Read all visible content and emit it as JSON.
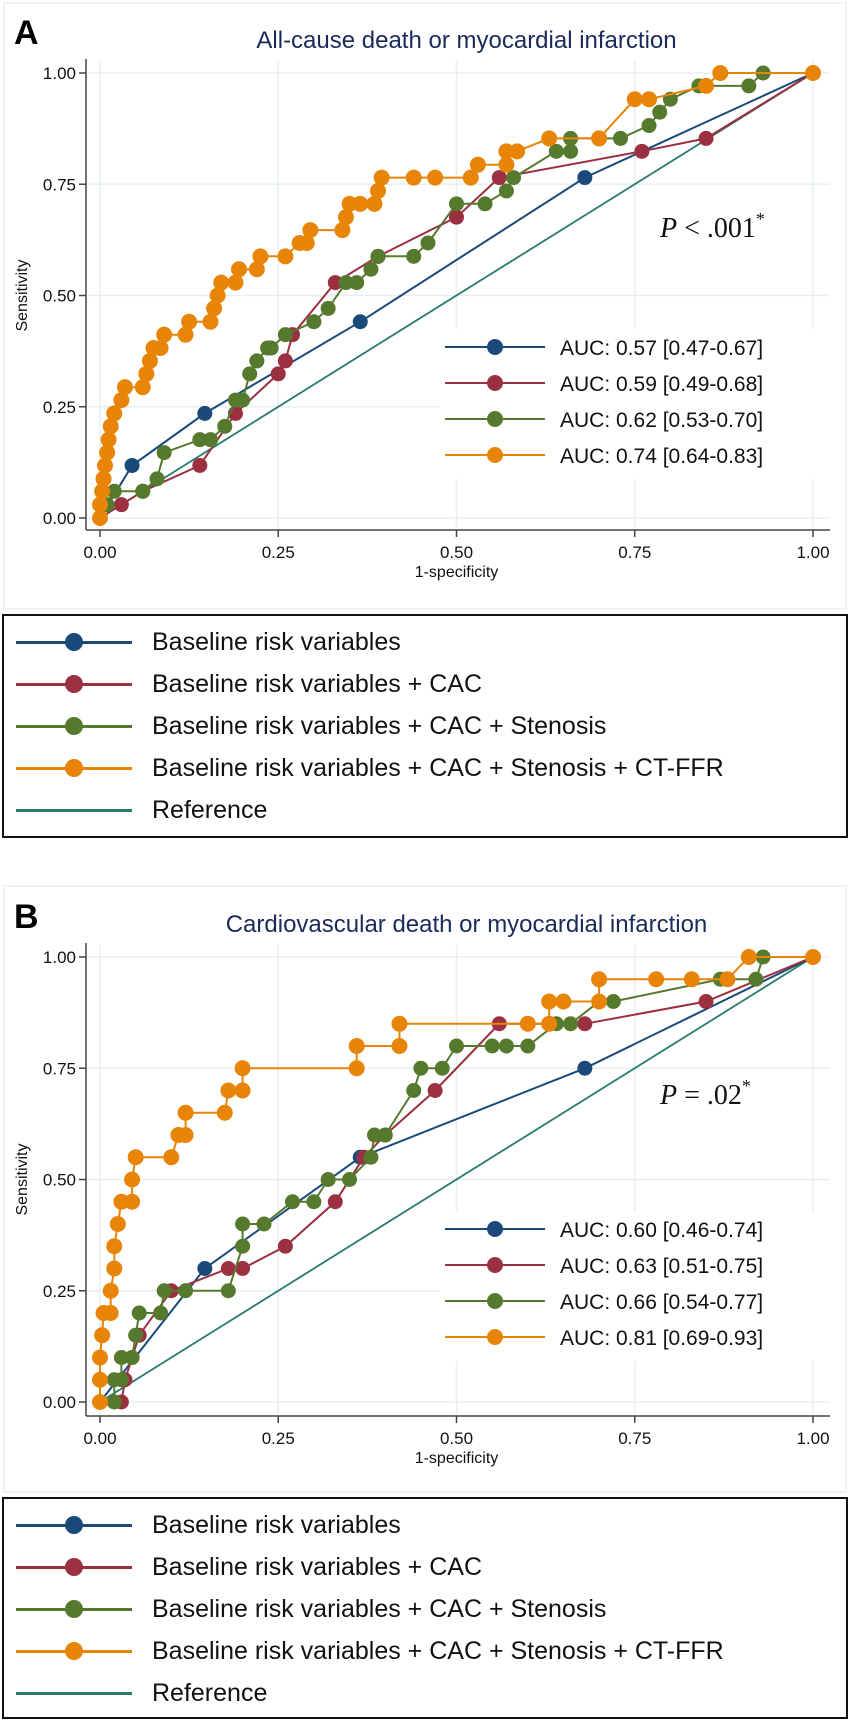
{
  "colors": {
    "baseline": "#1a4a7a",
    "cac": "#9b3040",
    "stenosis": "#557a2e",
    "ctffr": "#e88508",
    "reference": "#2a7a6e",
    "title": "#1a2a5a",
    "grid": "#e6f0f3"
  },
  "legend_labels": [
    "Baseline risk variables",
    "Baseline risk variables + CAC",
    "Baseline risk variables + CAC + Stenosis",
    "Baseline risk variables + CAC + Stenosis + CT-FFR",
    "Reference"
  ],
  "chart_data": [
    {
      "type": "line",
      "panel_label": "A",
      "title": "All-cause death or myocardial infarction",
      "xlabel": "1-specificity",
      "ylabel": "Sensitivity",
      "xlim": [
        0,
        1
      ],
      "ylim": [
        0,
        1
      ],
      "xticks": [
        "0.00",
        "0.25",
        "0.50",
        "0.75",
        "1.00"
      ],
      "yticks": [
        "0.00",
        "0.25",
        "0.50",
        "0.75",
        "1.00"
      ],
      "grid": true,
      "annotation": "P < .001*",
      "auc_legend": [
        "AUC: 0.57 [0.47-0.67]",
        "AUC: 0.59 [0.49-0.68]",
        "AUC: 0.62 [0.53-0.70]",
        "AUC: 0.74 [0.64-0.83]"
      ],
      "series": [
        {
          "name": "Baseline risk variables",
          "key": "baseline",
          "points": [
            [
              0,
              0
            ],
            [
              0.045,
              0.118
            ],
            [
              0.147,
              0.235
            ],
            [
              0.365,
              0.441
            ],
            [
              0.68,
              0.765
            ],
            [
              1,
              1
            ]
          ]
        },
        {
          "name": "Baseline risk variables + CAC",
          "key": "cac",
          "points": [
            [
              0,
              0
            ],
            [
              0.03,
              0.03
            ],
            [
              0.06,
              0.06
            ],
            [
              0.14,
              0.118
            ],
            [
              0.19,
              0.235
            ],
            [
              0.25,
              0.324
            ],
            [
              0.26,
              0.353
            ],
            [
              0.27,
              0.412
            ],
            [
              0.33,
              0.529
            ],
            [
              0.39,
              0.588
            ],
            [
              0.5,
              0.676
            ],
            [
              0.56,
              0.765
            ],
            [
              0.76,
              0.824
            ],
            [
              0.85,
              0.853
            ],
            [
              1,
              1
            ]
          ]
        },
        {
          "name": "Baseline risk variables + CAC + Stenosis",
          "key": "stenosis",
          "points": [
            [
              0,
              0
            ],
            [
              0.01,
              0.03
            ],
            [
              0.02,
              0.06
            ],
            [
              0.06,
              0.06
            ],
            [
              0.08,
              0.088
            ],
            [
              0.09,
              0.147
            ],
            [
              0.14,
              0.176
            ],
            [
              0.155,
              0.176
            ],
            [
              0.175,
              0.206
            ],
            [
              0.19,
              0.265
            ],
            [
              0.2,
              0.265
            ],
            [
              0.21,
              0.324
            ],
            [
              0.22,
              0.353
            ],
            [
              0.235,
              0.382
            ],
            [
              0.24,
              0.382
            ],
            [
              0.26,
              0.412
            ],
            [
              0.3,
              0.441
            ],
            [
              0.32,
              0.471
            ],
            [
              0.345,
              0.529
            ],
            [
              0.36,
              0.529
            ],
            [
              0.38,
              0.559
            ],
            [
              0.39,
              0.588
            ],
            [
              0.44,
              0.588
            ],
            [
              0.46,
              0.618
            ],
            [
              0.5,
              0.706
            ],
            [
              0.54,
              0.706
            ],
            [
              0.57,
              0.735
            ],
            [
              0.58,
              0.765
            ],
            [
              0.64,
              0.824
            ],
            [
              0.66,
              0.824
            ],
            [
              0.66,
              0.853
            ],
            [
              0.73,
              0.853
            ],
            [
              0.77,
              0.882
            ],
            [
              0.785,
              0.912
            ],
            [
              0.8,
              0.941
            ],
            [
              0.84,
              0.971
            ],
            [
              0.91,
              0.971
            ],
            [
              0.93,
              1
            ],
            [
              1,
              1
            ]
          ]
        },
        {
          "name": "Baseline risk variables + CAC + Stenosis + CT-FFR",
          "key": "ctffr",
          "points": [
            [
              0,
              0
            ],
            [
              0,
              0.03
            ],
            [
              0.003,
              0.06
            ],
            [
              0.005,
              0.088
            ],
            [
              0.007,
              0.118
            ],
            [
              0.01,
              0.147
            ],
            [
              0.012,
              0.176
            ],
            [
              0.015,
              0.206
            ],
            [
              0.02,
              0.235
            ],
            [
              0.03,
              0.265
            ],
            [
              0.035,
              0.294
            ],
            [
              0.06,
              0.294
            ],
            [
              0.065,
              0.324
            ],
            [
              0.07,
              0.353
            ],
            [
              0.075,
              0.382
            ],
            [
              0.085,
              0.382
            ],
            [
              0.09,
              0.412
            ],
            [
              0.12,
              0.412
            ],
            [
              0.125,
              0.441
            ],
            [
              0.155,
              0.441
            ],
            [
              0.16,
              0.471
            ],
            [
              0.165,
              0.5
            ],
            [
              0.17,
              0.529
            ],
            [
              0.19,
              0.529
            ],
            [
              0.195,
              0.559
            ],
            [
              0.22,
              0.559
            ],
            [
              0.225,
              0.588
            ],
            [
              0.26,
              0.588
            ],
            [
              0.28,
              0.618
            ],
            [
              0.29,
              0.618
            ],
            [
              0.295,
              0.647
            ],
            [
              0.34,
              0.647
            ],
            [
              0.345,
              0.676
            ],
            [
              0.35,
              0.706
            ],
            [
              0.365,
              0.706
            ],
            [
              0.385,
              0.706
            ],
            [
              0.39,
              0.735
            ],
            [
              0.395,
              0.765
            ],
            [
              0.44,
              0.765
            ],
            [
              0.47,
              0.765
            ],
            [
              0.52,
              0.765
            ],
            [
              0.53,
              0.794
            ],
            [
              0.57,
              0.794
            ],
            [
              0.57,
              0.824
            ],
            [
              0.585,
              0.824
            ],
            [
              0.63,
              0.853
            ],
            [
              0.7,
              0.853
            ],
            [
              0.75,
              0.941
            ],
            [
              0.77,
              0.941
            ],
            [
              0.85,
              0.971
            ],
            [
              0.87,
              1
            ],
            [
              1,
              1
            ]
          ]
        },
        {
          "name": "Reference",
          "key": "reference",
          "points": [
            [
              0,
              0
            ],
            [
              1,
              1
            ]
          ]
        }
      ]
    },
    {
      "type": "line",
      "panel_label": "B",
      "title": "Cardiovascular death or myocardial infarction",
      "xlabel": "1-specificity",
      "ylabel": "Sensitivity",
      "xlim": [
        0,
        1
      ],
      "ylim": [
        0,
        1
      ],
      "xticks": [
        "0.00",
        "0.25",
        "0.50",
        "0.75",
        "1.00"
      ],
      "yticks": [
        "0.00",
        "0.25",
        "0.50",
        "0.75",
        "1.00"
      ],
      "grid": true,
      "annotation": "P = .02*",
      "auc_legend": [
        "AUC: 0.60 [0.46-0.74]",
        "AUC: 0.63 [0.51-0.75]",
        "AUC: 0.66 [0.54-0.77]",
        "AUC: 0.81 [0.69-0.93]"
      ],
      "series": [
        {
          "name": "Baseline risk variables",
          "key": "baseline",
          "points": [
            [
              0,
              0
            ],
            [
              0.147,
              0.3
            ],
            [
              0.365,
              0.55
            ],
            [
              0.68,
              0.75
            ],
            [
              1,
              1
            ]
          ]
        },
        {
          "name": "Baseline risk variables + CAC",
          "key": "cac",
          "points": [
            [
              0,
              0
            ],
            [
              0.03,
              0
            ],
            [
              0.035,
              0.05
            ],
            [
              0.045,
              0.1
            ],
            [
              0.055,
              0.15
            ],
            [
              0.1,
              0.25
            ],
            [
              0.18,
              0.3
            ],
            [
              0.2,
              0.3
            ],
            [
              0.26,
              0.35
            ],
            [
              0.33,
              0.45
            ],
            [
              0.37,
              0.55
            ],
            [
              0.4,
              0.6
            ],
            [
              0.47,
              0.7
            ],
            [
              0.56,
              0.85
            ],
            [
              0.68,
              0.85
            ],
            [
              0.85,
              0.9
            ],
            [
              1,
              1
            ]
          ]
        },
        {
          "name": "Baseline risk variables + CAC + Stenosis",
          "key": "stenosis",
          "points": [
            [
              0,
              0
            ],
            [
              0.02,
              0
            ],
            [
              0.02,
              0.05
            ],
            [
              0.03,
              0.05
            ],
            [
              0.03,
              0.1
            ],
            [
              0.045,
              0.1
            ],
            [
              0.05,
              0.15
            ],
            [
              0.055,
              0.2
            ],
            [
              0.085,
              0.2
            ],
            [
              0.09,
              0.25
            ],
            [
              0.12,
              0.25
            ],
            [
              0.18,
              0.25
            ],
            [
              0.2,
              0.35
            ],
            [
              0.2,
              0.4
            ],
            [
              0.23,
              0.4
            ],
            [
              0.27,
              0.45
            ],
            [
              0.3,
              0.45
            ],
            [
              0.32,
              0.5
            ],
            [
              0.35,
              0.5
            ],
            [
              0.38,
              0.55
            ],
            [
              0.385,
              0.6
            ],
            [
              0.4,
              0.6
            ],
            [
              0.44,
              0.7
            ],
            [
              0.45,
              0.75
            ],
            [
              0.48,
              0.75
            ],
            [
              0.5,
              0.8
            ],
            [
              0.55,
              0.8
            ],
            [
              0.57,
              0.8
            ],
            [
              0.6,
              0.8
            ],
            [
              0.64,
              0.85
            ],
            [
              0.66,
              0.85
            ],
            [
              0.7,
              0.9
            ],
            [
              0.72,
              0.9
            ],
            [
              0.87,
              0.95
            ],
            [
              0.92,
              0.95
            ],
            [
              0.93,
              1
            ],
            [
              1,
              1
            ]
          ]
        },
        {
          "name": "Baseline risk variables + CAC + Stenosis + CT-FFR",
          "key": "ctffr",
          "points": [
            [
              0,
              0
            ],
            [
              0,
              0.05
            ],
            [
              0,
              0.1
            ],
            [
              0.003,
              0.15
            ],
            [
              0.005,
              0.2
            ],
            [
              0.015,
              0.2
            ],
            [
              0.015,
              0.25
            ],
            [
              0.02,
              0.3
            ],
            [
              0.02,
              0.35
            ],
            [
              0.025,
              0.4
            ],
            [
              0.03,
              0.45
            ],
            [
              0.045,
              0.45
            ],
            [
              0.045,
              0.5
            ],
            [
              0.05,
              0.55
            ],
            [
              0.1,
              0.55
            ],
            [
              0.11,
              0.6
            ],
            [
              0.12,
              0.6
            ],
            [
              0.12,
              0.65
            ],
            [
              0.175,
              0.65
            ],
            [
              0.18,
              0.7
            ],
            [
              0.2,
              0.7
            ],
            [
              0.2,
              0.75
            ],
            [
              0.36,
              0.75
            ],
            [
              0.36,
              0.8
            ],
            [
              0.42,
              0.8
            ],
            [
              0.42,
              0.85
            ],
            [
              0.6,
              0.85
            ],
            [
              0.63,
              0.85
            ],
            [
              0.63,
              0.9
            ],
            [
              0.65,
              0.9
            ],
            [
              0.7,
              0.9
            ],
            [
              0.7,
              0.95
            ],
            [
              0.78,
              0.95
            ],
            [
              0.83,
              0.95
            ],
            [
              0.88,
              0.95
            ],
            [
              0.91,
              1
            ],
            [
              1,
              1
            ]
          ]
        },
        {
          "name": "Reference",
          "key": "reference",
          "points": [
            [
              0,
              0
            ],
            [
              1,
              1
            ]
          ]
        }
      ]
    }
  ]
}
